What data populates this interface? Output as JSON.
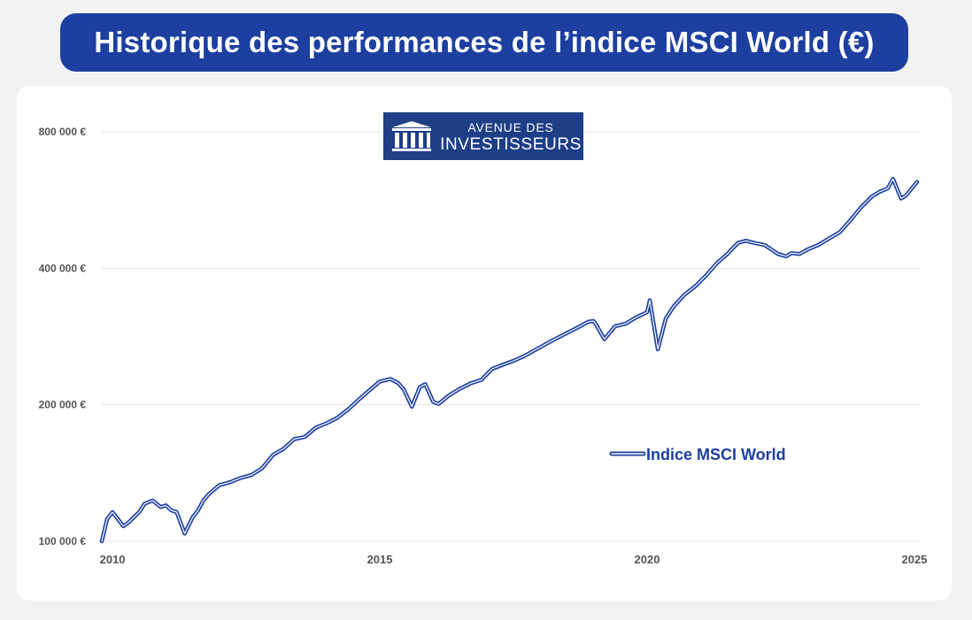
{
  "title": "Historique des performances de l’indice MSCI World (€)",
  "logo": {
    "line1": "AVENUE DES",
    "line2": "INVESTISSEURS",
    "background": "#1e3e86",
    "text_color": "#ffffff"
  },
  "colors": {
    "banner": "#1c3fa0",
    "line": "#1c3fa0",
    "grid": "#e3e3e3",
    "tick_text": "#555555"
  },
  "chart_data": {
    "type": "line",
    "title": "",
    "xlabel": "",
    "ylabel": "",
    "y_scale": "log",
    "ylim": [
      100000,
      800000
    ],
    "y_ticks": [
      100000,
      200000,
      400000,
      800000
    ],
    "y_tick_labels": [
      "100 000 €",
      "200 000 €",
      "400 000 €",
      "800 000 €"
    ],
    "xlim": [
      2009.8,
      2025.1
    ],
    "x_ticks": [
      2010,
      2015,
      2020,
      2025
    ],
    "x_tick_labels": [
      "2010",
      "2015",
      "2020",
      "2025"
    ],
    "grid": "horizontal",
    "legend_position": "center-right",
    "series": [
      {
        "name": "Indice MSCI World",
        "color": "#1c3fa0",
        "x": [
          2009.8,
          2009.9,
          2010.0,
          2010.1,
          2010.2,
          2010.3,
          2010.4,
          2010.5,
          2010.6,
          2010.75,
          2010.9,
          2011.0,
          2011.1,
          2011.2,
          2011.35,
          2011.5,
          2011.6,
          2011.7,
          2011.8,
          2011.9,
          2012.0,
          2012.2,
          2012.4,
          2012.6,
          2012.8,
          2013.0,
          2013.2,
          2013.4,
          2013.6,
          2013.8,
          2014.0,
          2014.2,
          2014.4,
          2014.6,
          2014.8,
          2015.0,
          2015.2,
          2015.35,
          2015.45,
          2015.6,
          2015.75,
          2015.85,
          2016.0,
          2016.1,
          2016.3,
          2016.5,
          2016.7,
          2016.9,
          2017.1,
          2017.3,
          2017.5,
          2017.7,
          2017.9,
          2018.1,
          2018.3,
          2018.5,
          2018.7,
          2018.9,
          2019.0,
          2019.05,
          2019.2,
          2019.4,
          2019.6,
          2019.8,
          2020.0,
          2020.05,
          2020.2,
          2020.35,
          2020.5,
          2020.7,
          2020.9,
          2021.1,
          2021.3,
          2021.5,
          2021.7,
          2021.85,
          2022.0,
          2022.2,
          2022.35,
          2022.45,
          2022.6,
          2022.7,
          2022.85,
          2023.0,
          2023.2,
          2023.4,
          2023.6,
          2023.8,
          2024.0,
          2024.2,
          2024.35,
          2024.5,
          2024.6,
          2024.75,
          2024.85,
          2024.95,
          2025.05
        ],
        "values": [
          100000,
          112000,
          116000,
          112000,
          108000,
          110000,
          113000,
          116000,
          121000,
          123000,
          119000,
          120000,
          117000,
          116000,
          104000,
          113000,
          117000,
          123000,
          127000,
          130000,
          133000,
          135000,
          138000,
          140000,
          145000,
          155000,
          160000,
          168000,
          170000,
          178000,
          182000,
          187000,
          195000,
          205000,
          215000,
          225000,
          228000,
          223000,
          216000,
          198000,
          219000,
          222000,
          203000,
          201000,
          210000,
          217000,
          223000,
          227000,
          240000,
          245000,
          250000,
          256000,
          264000,
          272000,
          280000,
          288000,
          296000,
          305000,
          306000,
          300000,
          279000,
          298000,
          302000,
          312000,
          320000,
          340000,
          265000,
          310000,
          330000,
          350000,
          365000,
          385000,
          410000,
          430000,
          455000,
          460000,
          455000,
          450000,
          438000,
          430000,
          425000,
          432000,
          430000,
          440000,
          450000,
          465000,
          480000,
          510000,
          545000,
          575000,
          590000,
          600000,
          630000,
          570000,
          580000,
          600000,
          620000
        ]
      }
    ]
  }
}
